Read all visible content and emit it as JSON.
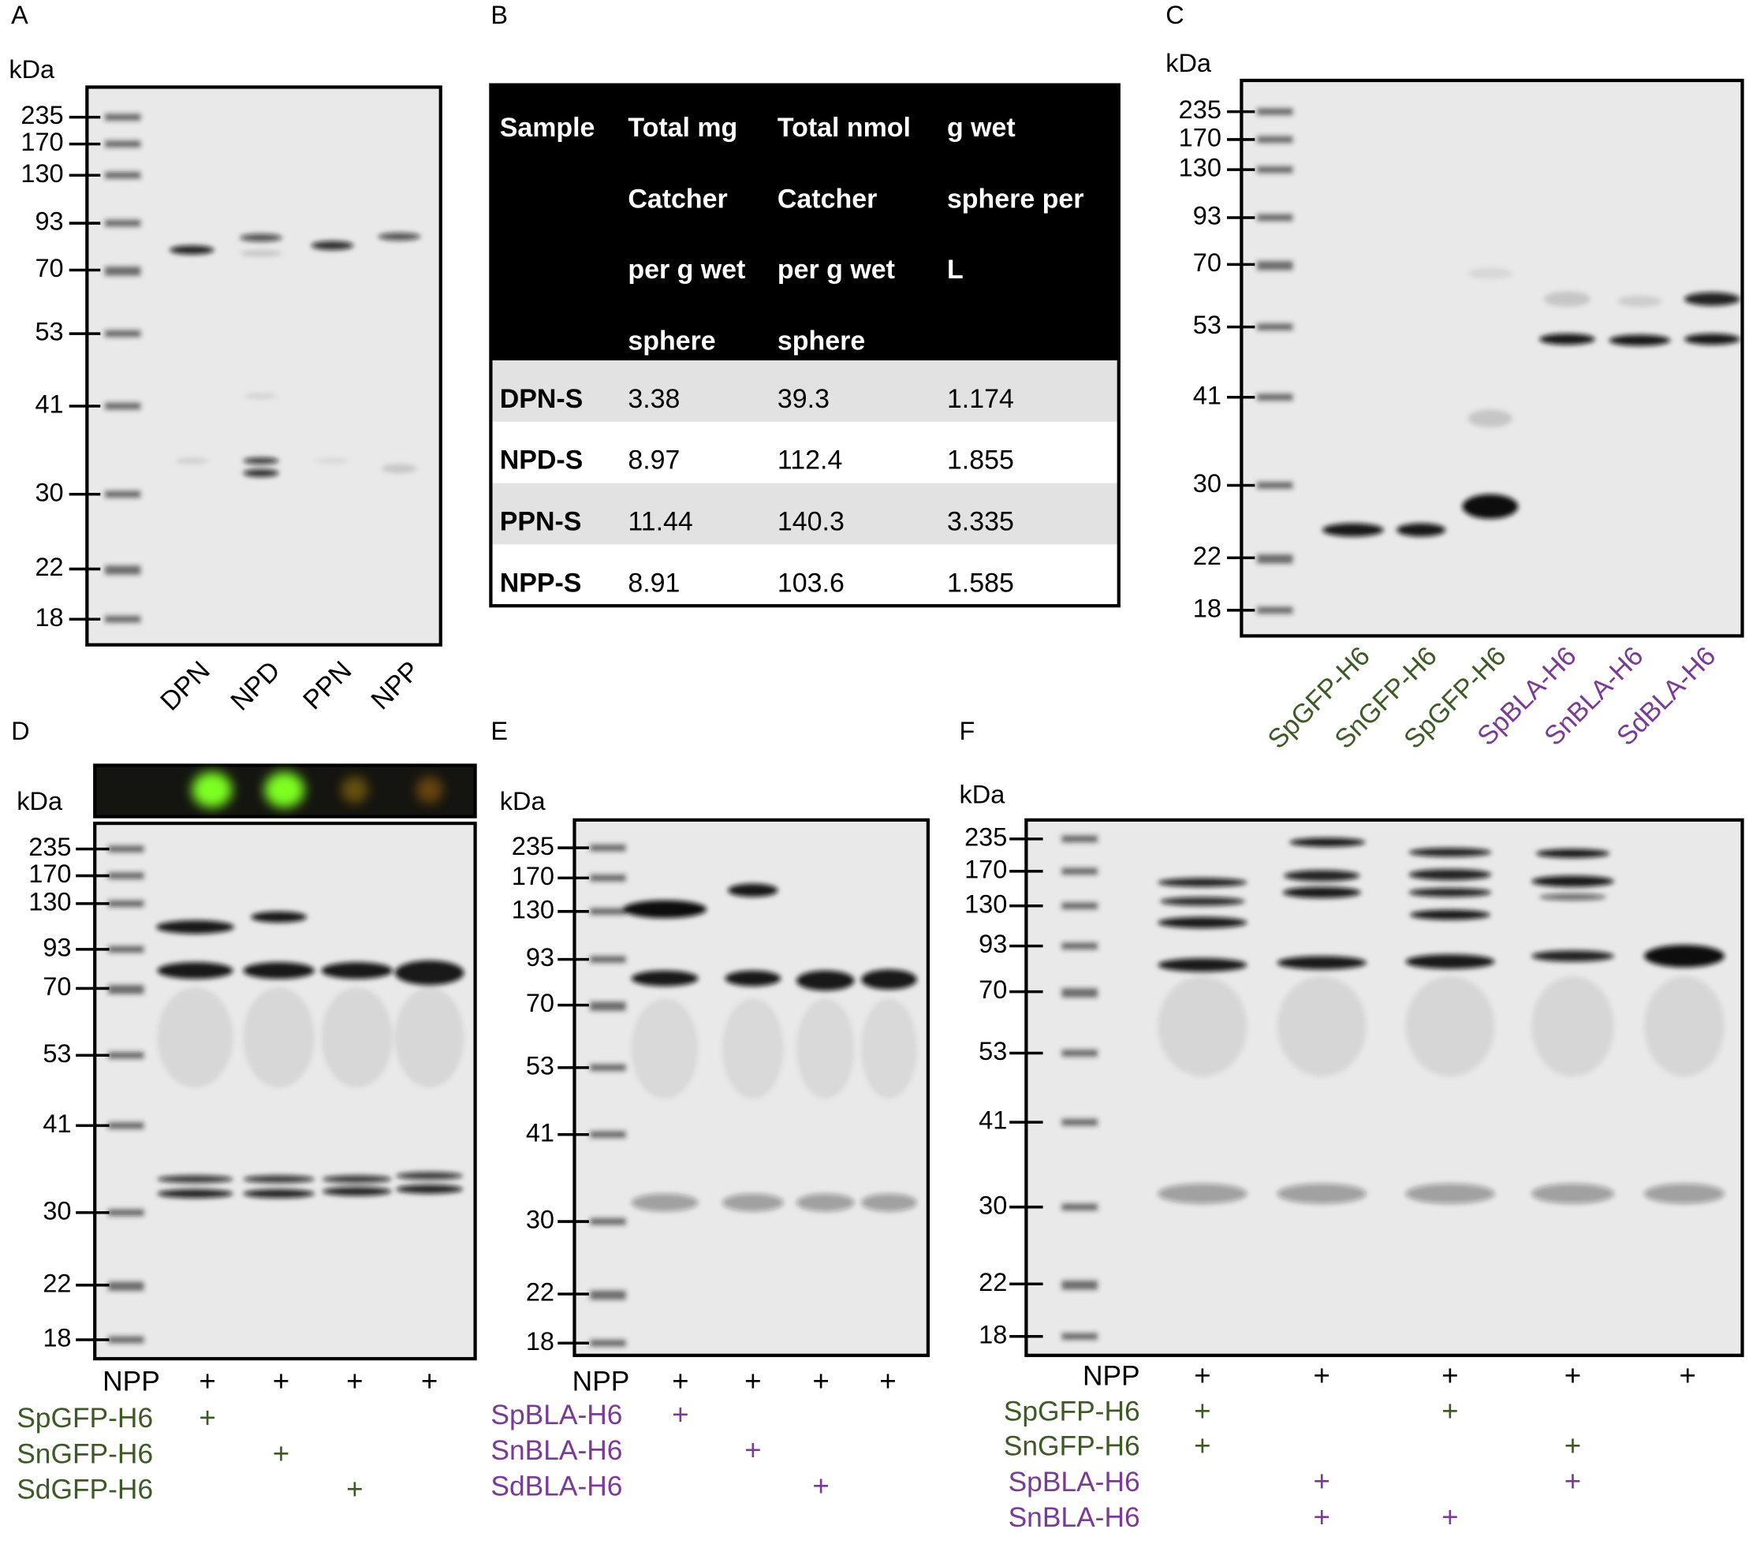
{
  "panels": {
    "A": {
      "label": "A",
      "unit": "kDa",
      "markers": [
        235,
        170,
        130,
        93,
        70,
        53,
        41,
        30,
        22,
        18
      ],
      "lanes": [
        "DPN",
        "NPD",
        "PPN",
        "NPP"
      ]
    },
    "B": {
      "label": "B",
      "table": {
        "header": [
          [
            "Sample"
          ],
          [
            "Total mg",
            "Catcher",
            "per g wet",
            "sphere"
          ],
          [
            "Total nmol",
            "Catcher",
            "per g wet",
            "sphere"
          ],
          [
            "g wet",
            "sphere per",
            "L"
          ]
        ],
        "rows": [
          [
            "DPN-S",
            3.38,
            39.3,
            1.174
          ],
          [
            "NPD-S",
            8.97,
            112.4,
            1.855
          ],
          [
            "PPN-S",
            11.44,
            140.3,
            3.335
          ],
          [
            "NPP-S",
            8.91,
            103.6,
            1.585
          ]
        ]
      }
    },
    "C": {
      "label": "C",
      "unit": "kDa",
      "markers": [
        235,
        170,
        130,
        93,
        70,
        53,
        41,
        30,
        22,
        18
      ],
      "lanes": [
        "SpGFP-H6",
        "SnGFP-H6",
        "SpGFP-H6",
        "SpBLA-H6",
        "SnBLA-H6",
        "SdBLA-H6"
      ],
      "lane_colors": [
        "#3d5a25",
        "#3d5a25",
        "#3d5a25",
        "#7a3a96",
        "#7a3a96",
        "#7a3a96"
      ]
    },
    "D": {
      "label": "D",
      "unit": "kDa",
      "markers": [
        235,
        170,
        130,
        93,
        70,
        53,
        41,
        30,
        22,
        18
      ],
      "rows": [
        {
          "name": "NPP",
          "color": "#000000",
          "marks": [
            "+",
            "+",
            "+",
            "+"
          ]
        },
        {
          "name": "SpGFP-H6",
          "color": "#3d5a25",
          "marks": [
            "+",
            null,
            null,
            null
          ]
        },
        {
          "name": "SnGFP-H6",
          "color": "#3d5a25",
          "marks": [
            null,
            "+",
            null,
            null
          ]
        },
        {
          "name": "SdGFP-H6",
          "color": "#3d5a25",
          "marks": [
            null,
            null,
            "+",
            null
          ]
        }
      ]
    },
    "E": {
      "label": "E",
      "unit": "kDa",
      "markers": [
        235,
        170,
        130,
        93,
        70,
        53,
        41,
        30,
        22,
        18
      ],
      "rows": [
        {
          "name": "NPP",
          "color": "#000000",
          "marks": [
            "+",
            "+",
            "+",
            "+"
          ]
        },
        {
          "name": "SpBLA-H6",
          "color": "#7a3a96",
          "marks": [
            "+",
            null,
            null,
            null
          ]
        },
        {
          "name": "SnBLA-H6",
          "color": "#7a3a96",
          "marks": [
            null,
            "+",
            null,
            null
          ]
        },
        {
          "name": "SdBLA-H6",
          "color": "#7a3a96",
          "marks": [
            null,
            null,
            "+",
            null
          ]
        }
      ]
    },
    "F": {
      "label": "F",
      "unit": "kDa",
      "markers": [
        235,
        170,
        130,
        93,
        70,
        53,
        41,
        30,
        22,
        18
      ],
      "rows": [
        {
          "name": "NPP",
          "color": "#000000",
          "marks": [
            "+",
            "+",
            "+",
            "+",
            "+"
          ]
        },
        {
          "name": "SpGFP-H6",
          "color": "#3d5a25",
          "marks": [
            "+",
            null,
            "+",
            null,
            null
          ]
        },
        {
          "name": "SnGFP-H6",
          "color": "#3d5a25",
          "marks": [
            "+",
            null,
            null,
            "+",
            null
          ]
        },
        {
          "name": "SpBLA-H6",
          "color": "#7a3a96",
          "marks": [
            null,
            "+",
            null,
            "+",
            null
          ]
        },
        {
          "name": "SnBLA-H6",
          "color": "#7a3a96",
          "marks": [
            null,
            "+",
            "+",
            null,
            null
          ]
        }
      ]
    }
  }
}
